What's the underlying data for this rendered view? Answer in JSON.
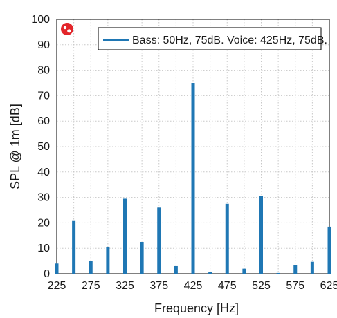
{
  "chart_data": {
    "type": "bar",
    "title": "",
    "xlabel": "Frequency [Hz]",
    "ylabel": "SPL @ 1m [dB]",
    "xlim": [
      225,
      625
    ],
    "ylim": [
      0,
      100
    ],
    "xticks": [
      225,
      275,
      325,
      375,
      425,
      475,
      525,
      575,
      625
    ],
    "yticks": [
      0,
      10,
      20,
      30,
      40,
      50,
      60,
      70,
      80,
      90,
      100
    ],
    "grid": true,
    "legend_position": "top-right",
    "series": [
      {
        "name": "Bass: 50Hz, 75dB. Voice: 425Hz, 75dB.",
        "color": "#1f77b4",
        "x": [
          225,
          250,
          275,
          300,
          325,
          350,
          375,
          400,
          425,
          450,
          475,
          500,
          525,
          550,
          575,
          600,
          625
        ],
        "values": [
          4,
          21,
          5,
          10.5,
          29.5,
          12.5,
          26,
          3,
          75,
          0.8,
          27.5,
          2,
          30.5,
          0.3,
          3.3,
          4.7,
          18.5
        ]
      }
    ],
    "logo_icon": "red-circle-logo-icon"
  }
}
